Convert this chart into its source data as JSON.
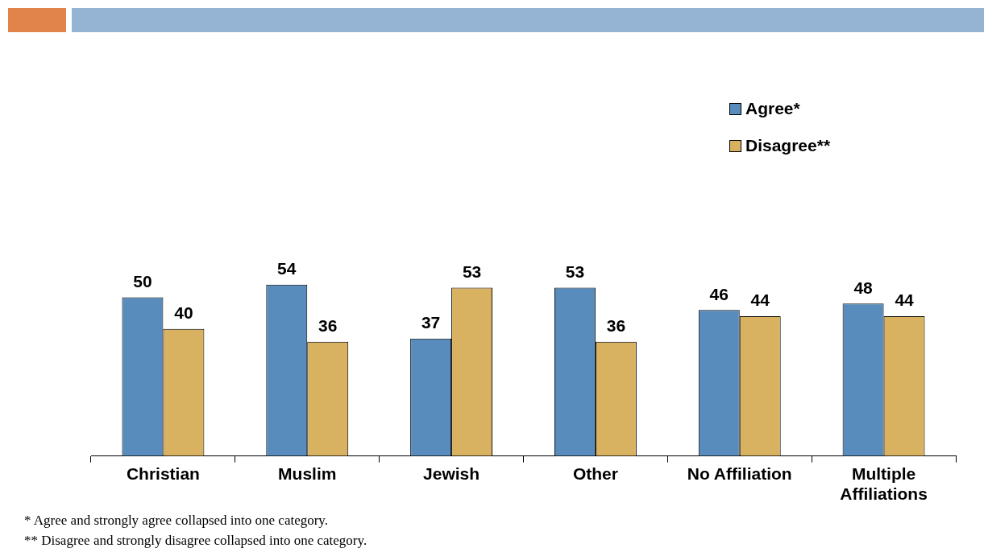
{
  "chart_data": {
    "type": "bar",
    "categories": [
      "Christian",
      "Muslim",
      "Jewish",
      "Other",
      "No Affiliation",
      "Multiple Affiliations"
    ],
    "series": [
      {
        "name": "Agree*",
        "color": "#578cbc",
        "values": [
          50,
          54,
          37,
          53,
          46,
          48
        ]
      },
      {
        "name": "Disagree**",
        "color": "#d8b261",
        "values": [
          40,
          36,
          53,
          36,
          44,
          44
        ]
      }
    ],
    "tick_labels": "x",
    "data_labels": true,
    "legend": "top right",
    "grid": false,
    "annotations": [
      "* Agree and strongly agree collapsed into one category.",
      "** Disagree and strongly disagree collapsed into one category."
    ]
  }
}
